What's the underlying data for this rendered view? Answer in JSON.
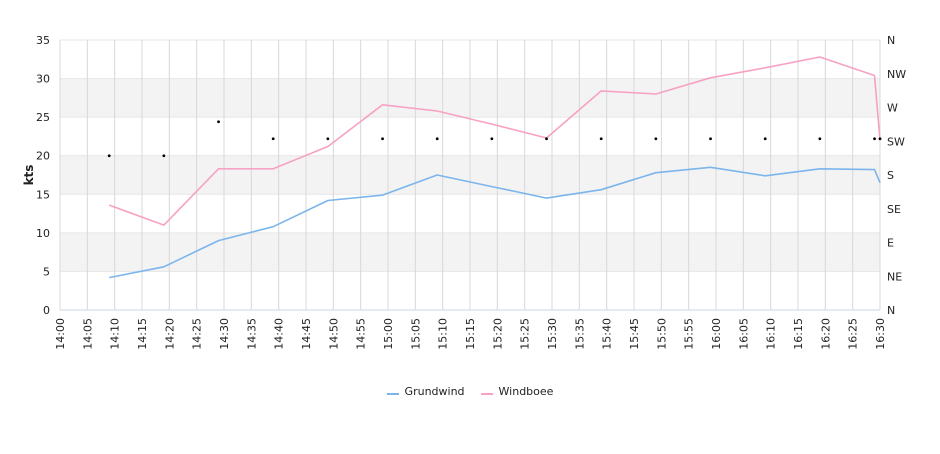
{
  "chart_data": {
    "type": "line",
    "ylabel": "kts",
    "ylim": [
      0,
      35
    ],
    "yticks": [
      "0",
      "5",
      "10",
      "15",
      "20",
      "25",
      "30",
      "35"
    ],
    "right_axis_labels": [
      "N",
      "NE",
      "E",
      "SE",
      "S",
      "SW",
      "W",
      "NW",
      "N"
    ],
    "x_tick_labels": [
      "14:00",
      "14:05",
      "14:10",
      "14:15",
      "14:20",
      "14:25",
      "14:30",
      "14:35",
      "14:40",
      "14:45",
      "14:50",
      "14:55",
      "15:00",
      "15:05",
      "15:10",
      "15:15",
      "15:20",
      "15:25",
      "15:30",
      "15:35",
      "15:40",
      "15:45",
      "15:50",
      "15:55",
      "16:00",
      "16:05",
      "16:10",
      "16:15",
      "16:20",
      "16:25",
      "16:30"
    ],
    "x_range_minutes": [
      0,
      150
    ],
    "grid": true,
    "banding": true,
    "legend_position": "bottom-center",
    "series": [
      {
        "name": "Grundwind",
        "color": "#7cb5ec",
        "points": [
          [
            "14:09",
            4.2
          ],
          [
            "14:19",
            5.6
          ],
          [
            "14:29",
            9.0
          ],
          [
            "14:39",
            10.8
          ],
          [
            "14:49",
            14.2
          ],
          [
            "14:59",
            14.9
          ],
          [
            "15:09",
            17.5
          ],
          [
            "15:19",
            16.0
          ],
          [
            "15:29",
            14.5
          ],
          [
            "15:39",
            15.6
          ],
          [
            "15:49",
            17.8
          ],
          [
            "15:59",
            18.5
          ],
          [
            "16:09",
            17.4
          ],
          [
            "16:19",
            18.3
          ],
          [
            "16:29",
            18.2
          ],
          [
            "16:30",
            16.5
          ]
        ]
      },
      {
        "name": "Windboee",
        "color": "#f7a1c4",
        "points": [
          [
            "14:09",
            13.6
          ],
          [
            "14:19",
            11.0
          ],
          [
            "14:29",
            18.3
          ],
          [
            "14:39",
            18.3
          ],
          [
            "14:49",
            21.2
          ],
          [
            "14:59",
            26.6
          ],
          [
            "15:09",
            25.8
          ],
          [
            "15:19",
            24.1
          ],
          [
            "15:29",
            22.3
          ],
          [
            "15:39",
            28.4
          ],
          [
            "15:49",
            28.0
          ],
          [
            "15:59",
            30.1
          ],
          [
            "16:09",
            31.4
          ],
          [
            "16:19",
            32.8
          ],
          [
            "16:29",
            30.4
          ],
          [
            "16:30",
            22.0
          ]
        ]
      },
      {
        "name": "direction",
        "marker": "dot",
        "color": "#000000",
        "points": [
          [
            "14:09",
            20.0
          ],
          [
            "14:19",
            20.0
          ],
          [
            "14:29",
            24.4
          ],
          [
            "14:39",
            22.2
          ],
          [
            "14:49",
            22.2
          ],
          [
            "14:59",
            22.2
          ],
          [
            "15:09",
            22.2
          ],
          [
            "15:19",
            22.2
          ],
          [
            "15:29",
            22.2
          ],
          [
            "15:39",
            22.2
          ],
          [
            "15:49",
            22.2
          ],
          [
            "15:59",
            22.2
          ],
          [
            "16:09",
            22.2
          ],
          [
            "16:19",
            22.2
          ],
          [
            "16:29",
            22.2
          ],
          [
            "16:30",
            22.2
          ]
        ]
      }
    ]
  }
}
